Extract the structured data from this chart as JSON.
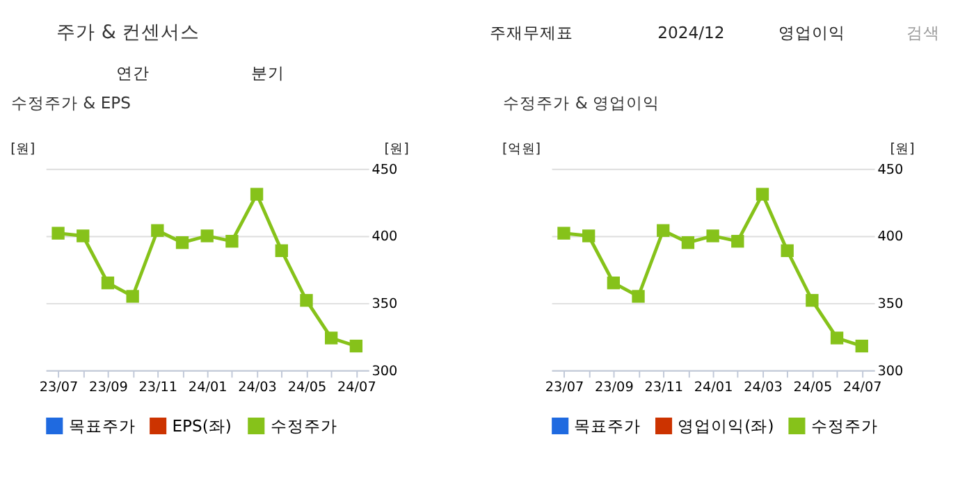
{
  "chart_data": [
    {
      "type": "line",
      "title": "수정주가 & EPS",
      "ylabel": "[원]",
      "y2label": "[원]",
      "annotations": [
        "주가 & 컨센서스",
        "주재무제표",
        "2024/12",
        "영업이익",
        "검색",
        "연간",
        "분기"
      ],
      "categories": [
        "23/07",
        null,
        "23/09",
        null,
        "23/11",
        null,
        "24/01",
        null,
        "24/03",
        null,
        "24/05",
        null,
        "24/07"
      ],
      "series": [
        {
          "name": "목표주가",
          "color": "#1f6ae0",
          "values": [
            null,
            null,
            null,
            null,
            null,
            null,
            null,
            null,
            null,
            null,
            null,
            null,
            null
          ]
        },
        {
          "name": "EPS(좌)",
          "color": "#cc3300",
          "values": [
            null,
            null,
            null,
            null,
            null,
            null,
            null,
            null,
            null,
            null,
            null,
            null,
            null
          ]
        },
        {
          "name": "수정주가",
          "color": "#86c21a",
          "axis": "y2",
          "values": [
            402,
            400,
            365,
            355,
            404,
            395,
            400,
            396,
            431,
            389,
            352,
            324,
            318
          ]
        }
      ],
      "y2lim": [
        300,
        450
      ],
      "y2ticks": [
        300,
        350,
        400,
        450
      ],
      "grid": "y",
      "legend": "bottom",
      "marker": "square",
      "line_style": "solid"
    },
    {
      "type": "line",
      "title": "수정주가 & 영업이익",
      "ylabel": "[억원]",
      "y2label": "[원]",
      "categories": [
        "23/07",
        null,
        "23/09",
        null,
        "23/11",
        null,
        "24/01",
        null,
        "24/03",
        null,
        "24/05",
        null,
        "24/07"
      ],
      "series": [
        {
          "name": "목표주가",
          "color": "#1f6ae0",
          "values": [
            null,
            null,
            null,
            null,
            null,
            null,
            null,
            null,
            null,
            null,
            null,
            null,
            null
          ]
        },
        {
          "name": "영업이익(좌)",
          "color": "#cc3300",
          "values": [
            null,
            null,
            null,
            null,
            null,
            null,
            null,
            null,
            null,
            null,
            null,
            null,
            null
          ]
        },
        {
          "name": "수정주가",
          "color": "#86c21a",
          "axis": "y2",
          "values": [
            402,
            400,
            365,
            355,
            404,
            395,
            400,
            396,
            431,
            389,
            352,
            324,
            318
          ]
        }
      ],
      "y2lim": [
        300,
        450
      ],
      "y2ticks": [
        300,
        350,
        400,
        450
      ],
      "grid": "y",
      "legend": "bottom",
      "marker": "square",
      "line_style": "solid"
    }
  ]
}
